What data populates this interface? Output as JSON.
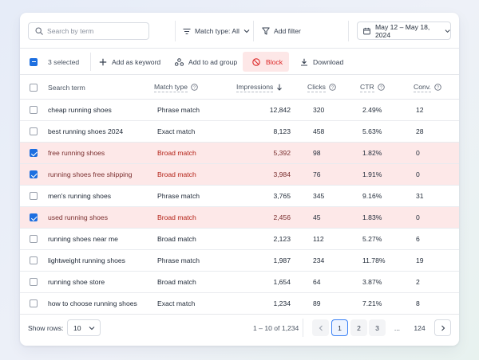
{
  "toolbar": {
    "search_placeholder": "Search by term",
    "match_type_label": "Match type: All",
    "add_filter_label": "Add filter",
    "date_range": "May 12 – May 18, 2024"
  },
  "actions": {
    "selected_count": "3 selected",
    "add_keyword": "Add as keyword",
    "add_group": "Add to ad group",
    "block": "Block",
    "download": "Download"
  },
  "columns": {
    "term": "Search term",
    "match": "Match type",
    "impressions": "Impressions",
    "clicks": "Clicks",
    "ctr": "CTR",
    "conv": "Conv."
  },
  "rows": [
    {
      "term": "cheap running shoes",
      "match": "Phrase match",
      "impressions": "12,842",
      "clicks": "320",
      "ctr": "2.49%",
      "conv": "12",
      "selected": false
    },
    {
      "term": "best running shoes 2024",
      "match": "Exact match",
      "impressions": "8,123",
      "clicks": "458",
      "ctr": "5.63%",
      "conv": "28",
      "selected": false
    },
    {
      "term": "free running shoes",
      "match": "Broad match",
      "impressions": "5,392",
      "clicks": "98",
      "ctr": "1.82%",
      "conv": "0",
      "selected": true
    },
    {
      "term": "running shoes free shipping",
      "match": "Broad match",
      "impressions": "3,984",
      "clicks": "76",
      "ctr": "1.91%",
      "conv": "0",
      "selected": true
    },
    {
      "term": "men's running shoes",
      "match": "Phrase match",
      "impressions": "3,765",
      "clicks": "345",
      "ctr": "9.16%",
      "conv": "31",
      "selected": false
    },
    {
      "term": "used running shoes",
      "match": "Broad match",
      "impressions": "2,456",
      "clicks": "45",
      "ctr": "1.83%",
      "conv": "0",
      "selected": true
    },
    {
      "term": "running shoes near me",
      "match": "Broad match",
      "impressions": "2,123",
      "clicks": "112",
      "ctr": "5.27%",
      "conv": "6",
      "selected": false
    },
    {
      "term": "lightweight running shoes",
      "match": "Phrase match",
      "impressions": "1,987",
      "clicks": "234",
      "ctr": "11.78%",
      "conv": "19",
      "selected": false
    },
    {
      "term": "running shoe store",
      "match": "Broad match",
      "impressions": "1,654",
      "clicks": "64",
      "ctr": "3.87%",
      "conv": "2",
      "selected": false
    },
    {
      "term": "how to choose running shoes",
      "match": "Exact match",
      "impressions": "1,234",
      "clicks": "89",
      "ctr": "7.21%",
      "conv": "8",
      "selected": false
    }
  ],
  "footer": {
    "show_rows_label": "Show rows:",
    "rows_value": "10",
    "range_text": "1 – 10 of 1,234",
    "pages": [
      "1",
      "2",
      "3",
      "...",
      "124"
    ],
    "current_page": "1"
  },
  "colors": {
    "accent": "#1d6fe0",
    "danger": "#dc2626",
    "selected_row_bg": "#fde8e8"
  }
}
